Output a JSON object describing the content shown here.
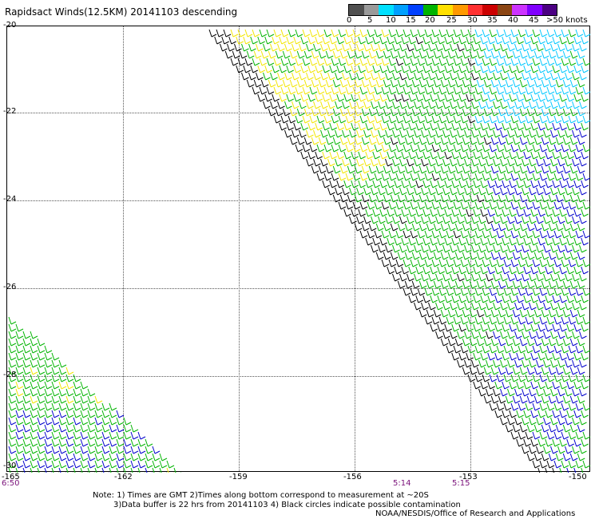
{
  "title": "Rapidsact Winds(12.5KM) 20141103 descending",
  "colorbar": {
    "labels": [
      "0",
      "5",
      "10",
      "15",
      "20",
      "25",
      "30",
      "35",
      "40",
      "45",
      ">50 knots"
    ],
    "colors": [
      "#505050",
      "#9a9a9a",
      "#00b8ff",
      "#0040ff",
      "#00b400",
      "#ffff00",
      "#ff9900",
      "#ff0000",
      "#cc0000",
      "#a52a2a",
      "#cc33ff",
      "#ff00cc",
      "#8000ff",
      "#660099"
    ]
  },
  "axes": {
    "lat_labels": [
      "-20",
      "-22",
      "-24",
      "-26",
      "-28",
      "-30"
    ],
    "lon_labels": [
      "-165",
      "-162",
      "-159",
      "-156",
      "-153",
      "-150"
    ],
    "lat_range": [
      -30,
      -20
    ],
    "lon_range": [
      -165,
      -150
    ]
  },
  "times": [
    "6:50",
    "5:14",
    "5:15"
  ],
  "notes": {
    "line1": "Note: 1) Times are GMT 2)Times along bottom correspond to measurement at ~20S",
    "line2": "3)Data buffer is 22 hrs from 20141103 4) Black circles indicate possible contamination",
    "credit": "NOAA/NESDIS/Office of Research and Applications"
  },
  "legend_colors": {
    "black": "#000000",
    "green": "#00b400",
    "blue": "#0000cc",
    "yellow": "#f2e600",
    "cyan": "#00c8ff"
  }
}
